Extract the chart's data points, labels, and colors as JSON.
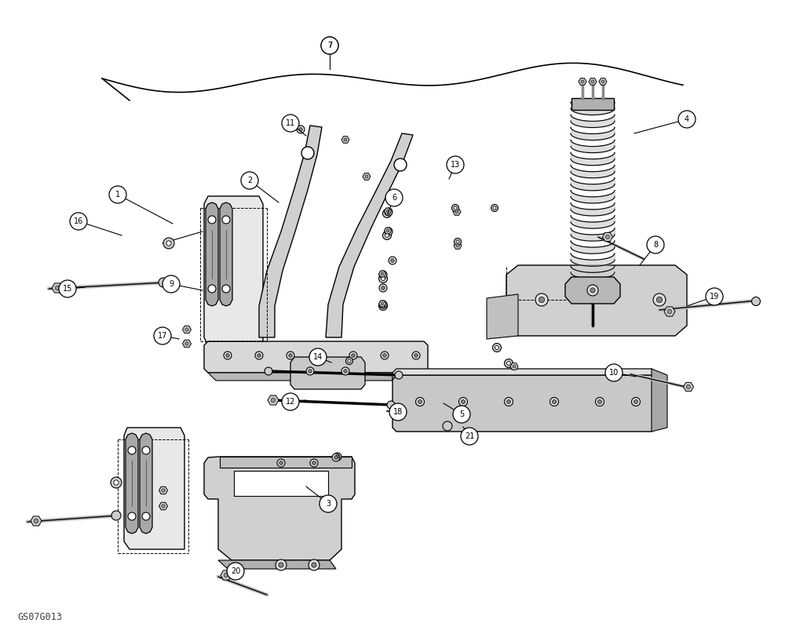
{
  "bg_color": "#ffffff",
  "line_color": "#000000",
  "watermark": "GS07G013",
  "fig_w": 10.0,
  "fig_h": 8.08,
  "dpi": 100
}
